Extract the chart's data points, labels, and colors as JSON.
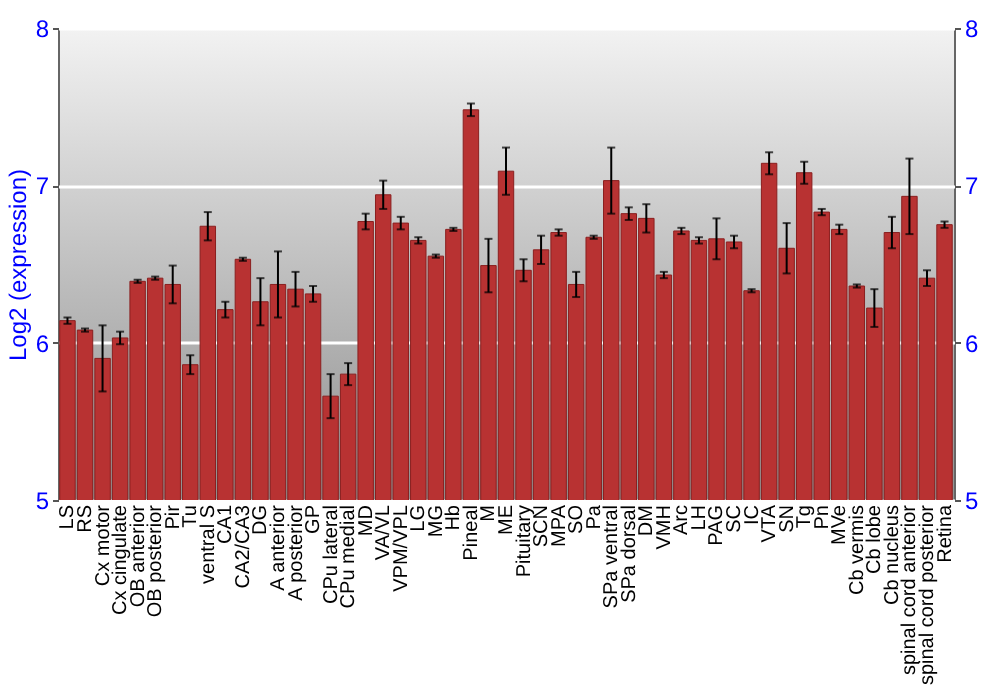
{
  "chart_data": {
    "type": "bar",
    "ylabel": "Log2 (expression)",
    "categories": [
      "LS",
      "RS",
      "Cx motor",
      "Cx cingulate",
      "OB anterior",
      "OB posterior",
      "Pir",
      "Tu",
      "ventral S",
      "CA1",
      "CA2/CA3",
      "DG",
      "A anterior",
      "A posterior",
      "GP",
      "CPu lateral",
      "CPu medial",
      "MD",
      "VA/VL",
      "VPM/VPL",
      "LG",
      "MG",
      "Hb",
      "Pineal",
      "M",
      "ME",
      "Pituitary",
      "SCN",
      "MPA",
      "SO",
      "Pa",
      "SPa ventral",
      "SPa dorsal",
      "DM",
      "VMH",
      "Arc",
      "LH",
      "PAG",
      "SC",
      "IC",
      "VTA",
      "SN",
      "Tg",
      "Pn",
      "MVe",
      "Cb vermis",
      "Cb lobe",
      "Cb nucleus",
      "spinal cord anterior",
      "spinal cord posterior",
      "Retina"
    ],
    "values": [
      6.14,
      6.08,
      5.9,
      6.03,
      6.39,
      6.41,
      6.37,
      5.86,
      6.74,
      6.21,
      6.53,
      6.26,
      6.37,
      6.34,
      6.31,
      5.66,
      5.8,
      6.77,
      6.94,
      6.76,
      6.65,
      6.55,
      6.72,
      7.48,
      6.49,
      7.09,
      6.46,
      6.59,
      6.7,
      6.37,
      6.67,
      7.03,
      6.82,
      6.79,
      6.43,
      6.71,
      6.65,
      6.66,
      6.64,
      6.33,
      7.14,
      6.6,
      7.08,
      6.83,
      6.72,
      6.36,
      6.22,
      6.7,
      6.93,
      6.41,
      6.75
    ],
    "errors": [
      0.02,
      0.01,
      0.21,
      0.04,
      0.01,
      0.01,
      0.12,
      0.06,
      0.09,
      0.05,
      0.01,
      0.15,
      0.21,
      0.11,
      0.05,
      0.14,
      0.07,
      0.05,
      0.09,
      0.04,
      0.02,
      0.01,
      0.01,
      0.04,
      0.17,
      0.15,
      0.07,
      0.09,
      0.02,
      0.08,
      0.01,
      0.21,
      0.04,
      0.09,
      0.02,
      0.02,
      0.02,
      0.13,
      0.04,
      0.01,
      0.07,
      0.16,
      0.07,
      0.02,
      0.03,
      0.01,
      0.12,
      0.1,
      0.24,
      0.05,
      0.02
    ],
    "color": "#b83232",
    "ylim": [
      5,
      8
    ],
    "yticks": [
      5,
      6,
      7,
      8
    ],
    "y2lim": [
      5,
      8
    ],
    "y2ticks": [
      5,
      6,
      7,
      8
    ],
    "grid": "y"
  }
}
